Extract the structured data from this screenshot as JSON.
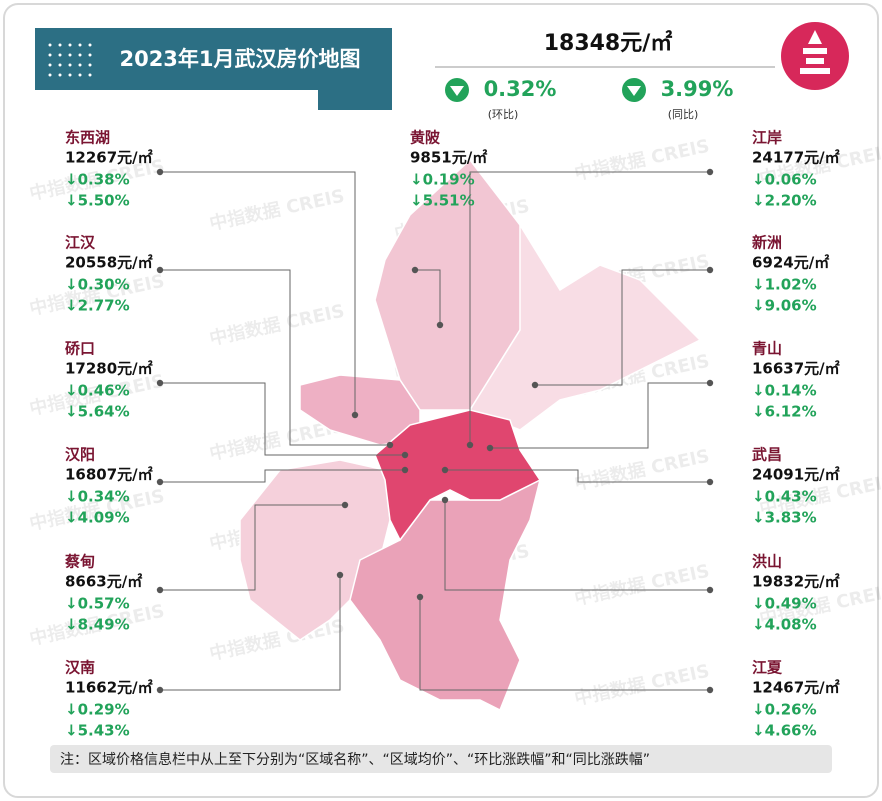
{
  "title": "2023年1月武汉房价地图",
  "overall": {
    "price": "18348元/㎡",
    "mom": "0.32%",
    "mom_label": "(环比)",
    "yoy": "3.99%",
    "yoy_label": "(同比)"
  },
  "districts": [
    {
      "name": "东西湖",
      "price": "12267元/㎡",
      "mom": "↓0.38%",
      "yoy": "↓5.50%"
    },
    {
      "name": "江汉",
      "price": "20558元/㎡",
      "mom": "↓0.30%",
      "yoy": "↓2.77%"
    },
    {
      "name": "硚口",
      "price": "17280元/㎡",
      "mom": "↓0.46%",
      "yoy": "↓5.64%"
    },
    {
      "name": "汉阳",
      "price": "16807元/㎡",
      "mom": "↓0.34%",
      "yoy": "↓4.09%"
    },
    {
      "name": "蔡甸",
      "price": "8663元/㎡",
      "mom": "↓0.57%",
      "yoy": "↓8.49%"
    },
    {
      "name": "汉南",
      "price": "11662元/㎡",
      "mom": "↓0.29%",
      "yoy": "↓5.43%"
    },
    {
      "name": "黄陂",
      "price": "9851元/㎡",
      "mom": "↓0.19%",
      "yoy": "↓5.51%"
    },
    {
      "name": "江岸",
      "price": "24177元/㎡",
      "mom": "↓0.06%",
      "yoy": "↓2.20%"
    },
    {
      "name": "新洲",
      "price": "6924元/㎡",
      "mom": "↓1.02%",
      "yoy": "↓9.06%"
    },
    {
      "name": "青山",
      "price": "16637元/㎡",
      "mom": "↓0.14%",
      "yoy": "↓6.12%"
    },
    {
      "name": "武昌",
      "price": "24091元/㎡",
      "mom": "↓0.43%",
      "yoy": "↓3.83%"
    },
    {
      "name": "洪山",
      "price": "19832元/㎡",
      "mom": "↓0.49%",
      "yoy": "↓4.08%"
    },
    {
      "name": "江夏",
      "price": "12467元/㎡",
      "mom": "↓0.26%",
      "yoy": "↓4.66%"
    }
  ],
  "watermark": "中指数据 CREIS",
  "note": "注：区域价格信息栏中从上至下分别为“区域名称”、“区域均价”、“环比涨跌幅”和“同比涨跌幅”"
}
